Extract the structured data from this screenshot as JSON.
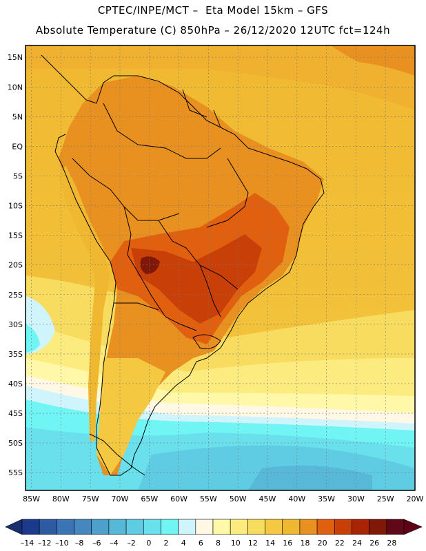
{
  "header": {
    "line1": "CPTEC/INPE/MCT –  Eta Model 15km – GFS",
    "line2": "Absolute Temperature (C) 850hPa – 26/12/2020 12UTC fct=124h"
  },
  "map": {
    "lat_labels": [
      "15N",
      "10N",
      "5N",
      "EQ",
      "5S",
      "10S",
      "15S",
      "20S",
      "25S",
      "30S",
      "35S",
      "40S",
      "45S",
      "50S",
      "55S"
    ],
    "lon_labels": [
      "85W",
      "80W",
      "75W",
      "70W",
      "65W",
      "60W",
      "55W",
      "50W",
      "45W",
      "40W",
      "35W",
      "30W",
      "25W",
      "20W"
    ],
    "lat_range": [
      17,
      -58
    ],
    "lon_range": [
      -86,
      -20
    ],
    "grid": true,
    "ocean_color": "#f0b830"
  },
  "colorbar": {
    "labels": [
      "-14",
      "-12",
      "-10",
      "-8",
      "-6",
      "-4",
      "-2",
      "0",
      "2",
      "4",
      "6",
      "8",
      "10",
      "12",
      "14",
      "16",
      "18",
      "20",
      "22",
      "24",
      "26",
      "28"
    ],
    "colors": [
      "#1c3a8c",
      "#2d5aa0",
      "#3b74b4",
      "#4588c0",
      "#4ea0cc",
      "#58b8d8",
      "#5fcce4",
      "#6ae0ec",
      "#70f4f4",
      "#d0f4fc",
      "#fff8e4",
      "#fff8a8",
      "#fcec80",
      "#f8dc60",
      "#f4c840",
      "#f0b830",
      "#e89020",
      "#e06010",
      "#c84008",
      "#a82404",
      "#801808",
      "#600818"
    ],
    "under_color": "#183070",
    "over_color": "#600018"
  }
}
